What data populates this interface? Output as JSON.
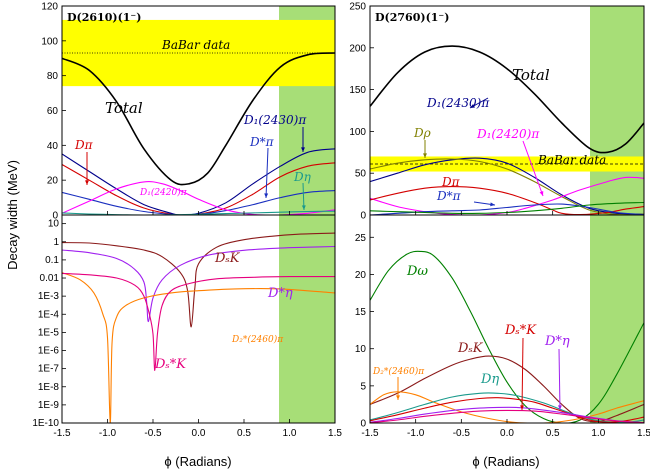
{
  "chart_data": {
    "type": "line",
    "x_ticks": [
      "-1.5",
      "-1.0",
      "-0.5",
      "0.0",
      "0.5",
      "1.0",
      "1.5"
    ],
    "xlim": [
      -1.5,
      1.5
    ],
    "green_band": [
      0.9,
      1.5
    ],
    "colors": {
      "black": "#000000",
      "red": "#d40000",
      "blue": "#00008b",
      "navy": "#1a2fbf",
      "teal": "#1a9a8c",
      "magenta": "#ff00ff",
      "olive": "#808000",
      "brown": "#8b1a1a",
      "violet": "#a020f0",
      "orange": "#ff8000",
      "pink": "#e6007e",
      "green": "#008000",
      "yellow": "#ffff00",
      "band": "#a7de77"
    },
    "y_axis_label": "Decay width (MeV)",
    "panels": {
      "top_left": {
        "title": "D(2610)(1⁻)",
        "ylim": [
          0,
          120
        ],
        "y_ticks": [
          "0",
          "20",
          "40",
          "60",
          "80",
          "100",
          "120"
        ],
        "babar": {
          "label": "BaBar data",
          "low": 74,
          "high": 112,
          "central": 93
        },
        "labels": {
          "total": "Total",
          "dpi": "Dπ",
          "d1_2430": "D₁(2430)π",
          "dstarpi": "D*π",
          "deta": "Dη",
          "d1_2420": "D₁(2420)π"
        },
        "series": [
          {
            "key": "total",
            "color": "black",
            "x": [
              -1.5,
              -1.2,
              -0.9,
              -0.6,
              -0.3,
              -0.1,
              0.1,
              0.3,
              0.6,
              0.9,
              1.2,
              1.5
            ],
            "y": [
              90,
              83,
              65,
              38,
              20,
              18,
              24,
              40,
              66,
              85,
              92,
              93
            ]
          },
          {
            "key": "dpi",
            "color": "red",
            "x": [
              -1.5,
              -1.2,
              -0.9,
              -0.6,
              -0.3,
              -0.15,
              0,
              0.3,
              0.6,
              0.9,
              1.2,
              1.5
            ],
            "y": [
              29,
              20,
              11,
              4,
              0.5,
              0,
              0.5,
              4,
              12,
              22,
              28,
              30
            ]
          },
          {
            "key": "d1_2430",
            "color": "blue",
            "x": [
              -1.5,
              -1.2,
              -0.9,
              -0.6,
              -0.3,
              -0.2,
              0,
              0.3,
              0.6,
              0.9,
              1.2,
              1.5
            ],
            "y": [
              35,
              25,
              15,
              6,
              1,
              0,
              1,
              7,
              18,
              28,
              36,
              38
            ]
          },
          {
            "key": "dstarpi",
            "color": "navy",
            "x": [
              -1.5,
              -1.2,
              -0.9,
              -0.6,
              -0.3,
              -0.2,
              0,
              0.3,
              0.6,
              0.9,
              1.2,
              1.5
            ],
            "y": [
              13,
              9,
              5,
              2,
              0.3,
              0,
              0.4,
              2.5,
              6,
              10,
              13,
              14
            ]
          },
          {
            "key": "d1_2420",
            "color": "magenta",
            "x": [
              -1.5,
              -1.2,
              -0.9,
              -0.6,
              -0.4,
              -0.2,
              0,
              0.3,
              0.6,
              0.9,
              1.2,
              1.5
            ],
            "y": [
              1,
              8,
              15,
              19,
              18,
              14,
              9,
              3,
              0.3,
              0,
              1,
              3
            ]
          },
          {
            "key": "deta",
            "color": "teal",
            "x": [
              -1.5,
              -1.2,
              -0.9,
              -0.6,
              -0.3,
              0,
              0.3,
              0.6,
              0.9,
              1.2,
              1.5
            ],
            "y": [
              1.2,
              0.6,
              0.2,
              0,
              0.1,
              0.4,
              0.8,
              1.2,
              1.6,
              2,
              2.2
            ]
          }
        ]
      },
      "bottom_left": {
        "ylog": true,
        "ylim": [
          1e-10,
          30
        ],
        "y_ticks": [
          {
            "v": 10,
            "t": "10"
          },
          {
            "v": 1,
            "t": "1"
          },
          {
            "v": 0.1,
            "t": "0.1"
          },
          {
            "v": 0.01,
            "t": "0.01"
          },
          {
            "v": 0.001,
            "t": "1E-3"
          },
          {
            "v": 0.0001,
            "t": "1E-4"
          },
          {
            "v": 1e-05,
            "t": "1E-5"
          },
          {
            "v": 1e-06,
            "t": "1E-6"
          },
          {
            "v": 1e-07,
            "t": "1E-7"
          },
          {
            "v": 1e-08,
            "t": "1E-8"
          },
          {
            "v": 1e-09,
            "t": "1E-9"
          },
          {
            "v": 1e-10,
            "t": "1E-10"
          }
        ],
        "labels": {
          "dsk": "DₛK",
          "dstareta": "D*η",
          "d2pi": "D₂*(2460)π",
          "dsstark": "Dₛ*K"
        },
        "series": [
          {
            "key": "dsk",
            "color": "brown",
            "x": [
              -1.5,
              -1.2,
              -0.9,
              -0.6,
              -0.4,
              -0.2,
              -0.12,
              -0.08,
              -0.04,
              0,
              0.2,
              0.5,
              0.8,
              1.1,
              1.5
            ],
            "y": [
              0.9,
              0.85,
              0.6,
              0.35,
              0.15,
              0.02,
              0.002,
              2e-05,
              0.003,
              0.06,
              0.5,
              1.3,
              2.0,
              2.6,
              3.0
            ]
          },
          {
            "key": "dstareta",
            "color": "violet",
            "x": [
              -1.5,
              -1.2,
              -0.9,
              -0.7,
              -0.6,
              -0.57,
              -0.55,
              -0.5,
              -0.4,
              -0.2,
              0.1,
              0.5,
              0.9,
              1.2,
              1.5
            ],
            "y": [
              0.35,
              0.25,
              0.12,
              0.03,
              0.006,
              0.0005,
              4e-05,
              0.0008,
              0.008,
              0.05,
              0.18,
              0.34,
              0.45,
              0.5,
              0.55
            ]
          },
          {
            "key": "d2pi",
            "color": "orange",
            "x": [
              -1.5,
              -1.3,
              -1.15,
              -1.05,
              -1.0,
              -0.97,
              -0.95,
              -0.9,
              -0.8,
              -0.6,
              -0.3,
              0,
              0.4,
              0.9,
              1.5
            ],
            "y": [
              0.02,
              0.008,
              0.0015,
              0.0001,
              5e-06,
              1e-10,
              3e-06,
              7e-05,
              0.0003,
              0.0008,
              0.0015,
              0.002,
              0.0025,
              0.0025,
              0.0015
            ]
          },
          {
            "key": "dsstark",
            "color": "pink",
            "x": [
              -1.5,
              -1.2,
              -0.9,
              -0.7,
              -0.6,
              -0.54,
              -0.5,
              -0.48,
              -0.45,
              -0.4,
              -0.3,
              -0.1,
              0.2,
              0.6,
              1.0,
              1.5
            ],
            "y": [
              0.018,
              0.015,
              0.01,
              0.004,
              0.001,
              0.0001,
              8e-06,
              8e-08,
              1e-05,
              0.0003,
              0.002,
              0.005,
              0.009,
              0.011,
              0.012,
              0.012
            ]
          }
        ]
      },
      "top_right": {
        "title": "D(2760)(1⁻)",
        "ylim": [
          0,
          250
        ],
        "y_ticks": [
          "0",
          "50",
          "100",
          "150",
          "200",
          "250"
        ],
        "babar": {
          "label": "BaBar data",
          "low": 52,
          "high": 70,
          "central": 61
        },
        "labels": {
          "total": "Total",
          "d1_2430": "D₁(2430)π",
          "drho": "Dρ",
          "d1_2420": "D₁(2420)π",
          "dpi": "Dπ",
          "dstarpi": "D*π"
        },
        "series": [
          {
            "key": "total",
            "color": "black",
            "x": [
              -1.5,
              -1.2,
              -0.9,
              -0.6,
              -0.3,
              0,
              0.3,
              0.6,
              0.9,
              1.1,
              1.3,
              1.5
            ],
            "y": [
              130,
              170,
              195,
              202,
              195,
              175,
              145,
              110,
              80,
              75,
              85,
              110
            ]
          },
          {
            "key": "d1_2430",
            "color": "blue",
            "x": [
              -1.5,
              -1.2,
              -0.9,
              -0.6,
              -0.3,
              0,
              0.3,
              0.6,
              0.9,
              1.2,
              1.5
            ],
            "y": [
              40,
              50,
              60,
              66,
              68,
              62,
              45,
              24,
              8,
              2,
              1
            ]
          },
          {
            "key": "drho",
            "color": "olive",
            "x": [
              -1.5,
              -1.2,
              -0.9,
              -0.6,
              -0.3,
              0,
              0.3,
              0.6,
              0.9,
              1.2,
              1.5
            ],
            "y": [
              55,
              62,
              66,
              67,
              64,
              55,
              40,
              22,
              6,
              0.5,
              1
            ]
          },
          {
            "key": "d1_2420",
            "color": "magenta",
            "x": [
              -1.5,
              -1.2,
              -0.9,
              -0.6,
              -0.3,
              0,
              0.2,
              0.5,
              0.8,
              1.1,
              1.3,
              1.5
            ],
            "y": [
              20,
              10,
              4,
              0.5,
              0,
              3,
              8,
              18,
              30,
              40,
              45,
              44
            ]
          },
          {
            "key": "dpi",
            "color": "red",
            "x": [
              -1.5,
              -1.2,
              -0.9,
              -0.6,
              -0.3,
              0,
              0.3,
              0.5,
              0.6,
              0.8,
              1.1,
              1.3,
              1.5
            ],
            "y": [
              18,
              26,
              32,
              34,
              32,
              26,
              15,
              6,
              2,
              0.5,
              3,
              7,
              10
            ]
          },
          {
            "key": "dstarpi",
            "color": "navy",
            "x": [
              -1.5,
              -1.2,
              -0.9,
              -0.6,
              -0.3,
              0,
              0.3,
              0.6,
              0.9,
              1.2,
              1.5
            ],
            "y": [
              0,
              2,
              4,
              5,
              6,
              9,
              12,
              13,
              9,
              3,
              0.5
            ]
          },
          {
            "key": "green",
            "color": "green",
            "x": [
              -1.5,
              -1.2,
              -0.9,
              -0.6,
              -0.3,
              0,
              0.3,
              0.6,
              0.9,
              1.2,
              1.5
            ],
            "y": [
              5,
              4,
              3,
              2,
              2,
              3,
              5,
              8,
              12,
              14,
              15
            ]
          }
        ]
      },
      "bottom_right": {
        "ylim": [
          0,
          28
        ],
        "y_ticks": [
          "0",
          "5",
          "10",
          "15",
          "20",
          "25"
        ],
        "labels": {
          "domega": "Dω",
          "dsk": "DₛK",
          "d2pi": "D₂*(2460)π",
          "dsstark": "Dₛ*K",
          "deta": "Dη",
          "dstareta": "D*η"
        },
        "series": [
          {
            "key": "domega",
            "color": "green",
            "x": [
              -1.5,
              -1.3,
              -1.1,
              -0.95,
              -0.8,
              -0.6,
              -0.4,
              -0.2,
              0,
              0.2,
              0.4,
              0.6,
              0.8,
              1.0,
              1.2,
              1.5
            ],
            "y": [
              16.5,
              20.5,
              22.7,
              23.1,
              22.5,
              19.5,
              15,
              10,
              5.5,
              2.3,
              0.6,
              0,
              0.4,
              2.5,
              6.5,
              13.5
            ]
          },
          {
            "key": "dsk",
            "color": "brown",
            "x": [
              -1.5,
              -1.2,
              -0.9,
              -0.6,
              -0.4,
              -0.2,
              0,
              0.2,
              0.4,
              0.6,
              0.8,
              1.0,
              1.2,
              1.5
            ],
            "y": [
              2.5,
              4,
              6,
              7.8,
              8.6,
              9,
              8.6,
              7.2,
              5,
              2.5,
              0.6,
              0.2,
              1,
              2.5
            ]
          },
          {
            "key": "d2pi",
            "color": "orange",
            "x": [
              -1.5,
              -1.35,
              -1.2,
              -1.0,
              -0.8,
              -0.5,
              -0.2,
              0.1,
              0.4,
              0.6,
              0.8,
              1.0,
              1.2,
              1.5
            ],
            "y": [
              2.5,
              3.8,
              4.2,
              3.8,
              2.8,
              1.5,
              0.6,
              0.05,
              0,
              0.2,
              0.6,
              1.2,
              2.0,
              3.0
            ]
          },
          {
            "key": "deta",
            "color": "teal",
            "x": [
              -1.5,
              -1.2,
              -0.9,
              -0.6,
              -0.3,
              -0.1,
              0.1,
              0.4,
              0.7,
              1.0,
              1.3,
              1.5
            ],
            "y": [
              0.4,
              1.4,
              2.5,
              3.5,
              4.0,
              4.0,
              3.7,
              2.7,
              1.3,
              0.3,
              0.1,
              0.4
            ]
          },
          {
            "key": "dsstark",
            "color": "red",
            "x": [
              -1.5,
              -1.2,
              -0.9,
              -0.6,
              -0.3,
              -0.1,
              0.1,
              0.3,
              0.5,
              0.7,
              0.9,
              1.1,
              1.3,
              1.5
            ],
            "y": [
              0.3,
              1.1,
              2.0,
              2.8,
              3.3,
              3.4,
              3.2,
              2.8,
              2.0,
              1.2,
              0.4,
              0.1,
              0.3,
              0.8
            ]
          },
          {
            "key": "dstareta",
            "color": "violet",
            "x": [
              -1.5,
              -1.2,
              -0.9,
              -0.6,
              -0.3,
              -0.1,
              0.1,
              0.3,
              0.6,
              0.9,
              1.2,
              1.5
            ],
            "y": [
              0.1,
              0.6,
              1.2,
              1.7,
              2.0,
              2.1,
              2.1,
              1.9,
              1.4,
              0.8,
              0.3,
              0.05
            ]
          },
          {
            "key": "purple",
            "color": "pink",
            "x": [
              -1.5,
              -1.2,
              -0.9,
              -0.6,
              -0.3,
              0,
              0.3,
              0.6,
              0.9,
              1.2,
              1.5
            ],
            "y": [
              0.05,
              0.4,
              0.9,
              1.3,
              1.6,
              1.7,
              1.6,
              1.2,
              0.7,
              0.25,
              0.05
            ]
          }
        ]
      }
    },
    "x_axis_label": "ϕ (Radians)"
  }
}
